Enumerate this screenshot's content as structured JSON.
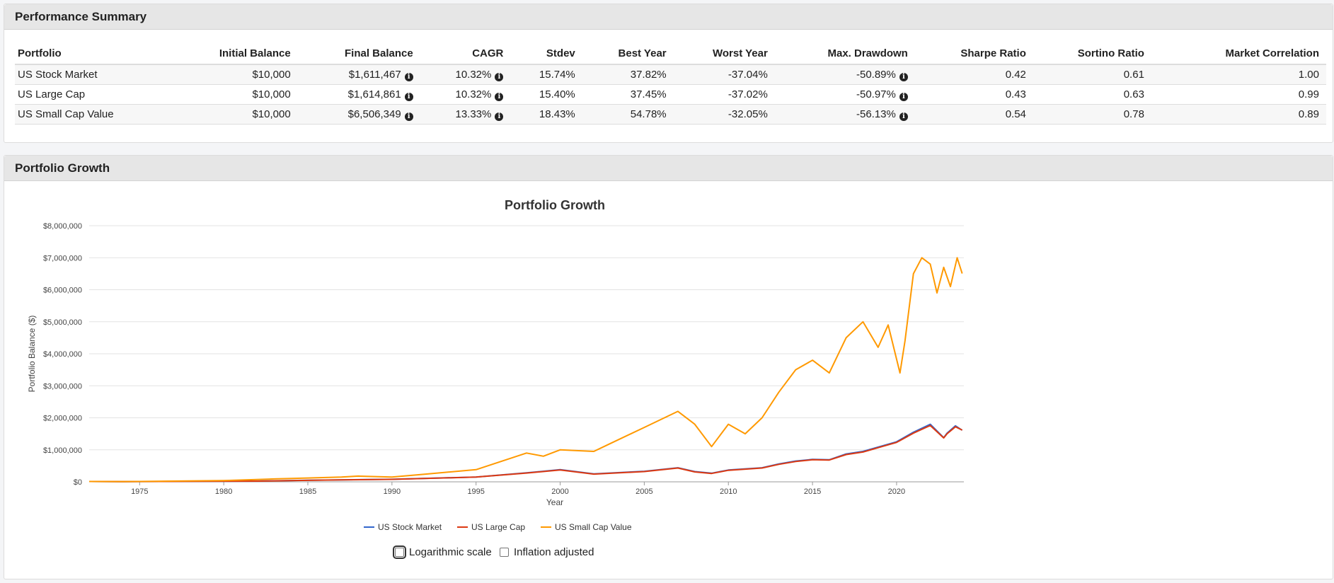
{
  "summary": {
    "title": "Performance Summary",
    "headers": [
      "Portfolio",
      "Initial Balance",
      "Final Balance",
      "CAGR",
      "Stdev",
      "Best Year",
      "Worst Year",
      "Max. Drawdown",
      "Sharpe Ratio",
      "Sortino Ratio",
      "Market Correlation"
    ],
    "rows": [
      {
        "portfolio": "US Stock Market",
        "initial": "$10,000",
        "final": "$1,611,467",
        "cagr": "10.32%",
        "stdev": "15.74%",
        "best": "37.82%",
        "worst": "-37.04%",
        "drawdown": "-50.89%",
        "sharpe": "0.42",
        "sortino": "0.61",
        "corr": "1.00"
      },
      {
        "portfolio": "US Large Cap",
        "initial": "$10,000",
        "final": "$1,614,861",
        "cagr": "10.32%",
        "stdev": "15.40%",
        "best": "37.45%",
        "worst": "-37.02%",
        "drawdown": "-50.97%",
        "sharpe": "0.43",
        "sortino": "0.63",
        "corr": "0.99"
      },
      {
        "portfolio": "US Small Cap Value",
        "initial": "$10,000",
        "final": "$6,506,349",
        "cagr": "13.33%",
        "stdev": "18.43%",
        "best": "54.78%",
        "worst": "-32.05%",
        "drawdown": "-56.13%",
        "sharpe": "0.54",
        "sortino": "0.78",
        "corr": "0.89"
      }
    ]
  },
  "growth": {
    "title": "Portfolio Growth",
    "controls": {
      "log_scale_label": "Logarithmic scale",
      "inflation_label": "Inflation adjusted"
    }
  },
  "icons": {
    "info": "info-circle-icon"
  },
  "chart_data": {
    "type": "line",
    "title": "Portfolio Growth",
    "xlabel": "Year",
    "ylabel": "Portfolio Balance ($)",
    "xlim": [
      1972,
      2024
    ],
    "ylim": [
      0,
      8000000
    ],
    "xticks": [
      1975,
      1980,
      1985,
      1990,
      1995,
      2000,
      2005,
      2010,
      2015,
      2020
    ],
    "yticks": [
      0,
      1000000,
      2000000,
      3000000,
      4000000,
      5000000,
      6000000,
      7000000,
      8000000
    ],
    "ytick_labels": [
      "$0",
      "$1,000,000",
      "$2,000,000",
      "$3,000,000",
      "$4,000,000",
      "$5,000,000",
      "$6,000,000",
      "$7,000,000",
      "$8,000,000"
    ],
    "grid": true,
    "legend_position": "bottom-center",
    "series": [
      {
        "name": "US Stock Market",
        "color": "#3366cc",
        "x": [
          1972,
          1974,
          1975,
          1980,
          1982,
          1985,
          1987,
          1990,
          1995,
          1998,
          2000,
          2002,
          2005,
          2007,
          2008,
          2009,
          2010,
          2012,
          2013,
          2014,
          2015,
          2016,
          2017,
          2018,
          2019,
          2020,
          2021,
          2022,
          2022.8,
          2023,
          2023.5,
          2023.9
        ],
        "y": [
          10000,
          7000,
          9000,
          20000,
          24000,
          48000,
          62000,
          80000,
          150000,
          280000,
          380000,
          250000,
          330000,
          440000,
          320000,
          270000,
          370000,
          440000,
          560000,
          650000,
          700000,
          690000,
          870000,
          950000,
          1100000,
          1250000,
          1550000,
          1800000,
          1380000,
          1520000,
          1750000,
          1611467
        ]
      },
      {
        "name": "US Large Cap",
        "color": "#dc3912",
        "x": [
          1972,
          1974,
          1975,
          1980,
          1982,
          1985,
          1987,
          1990,
          1995,
          1998,
          2000,
          2002,
          2005,
          2007,
          2008,
          2009,
          2010,
          2012,
          2013,
          2014,
          2015,
          2016,
          2017,
          2018,
          2019,
          2020,
          2021,
          2022,
          2022.8,
          2023,
          2023.5,
          2023.9
        ],
        "y": [
          10000,
          7000,
          9000,
          19000,
          23000,
          46000,
          60000,
          78000,
          148000,
          275000,
          370000,
          240000,
          320000,
          430000,
          310000,
          260000,
          360000,
          430000,
          545000,
          635000,
          690000,
          680000,
          850000,
          930000,
          1080000,
          1230000,
          1520000,
          1760000,
          1370000,
          1500000,
          1720000,
          1614861
        ]
      },
      {
        "name": "US Small Cap Value",
        "color": "#ff9900",
        "x": [
          1972,
          1974,
          1975,
          1980,
          1983,
          1985,
          1987,
          1988,
          1990,
          1992,
          1995,
          1998,
          1999,
          2000,
          2002,
          2003,
          2005,
          2007,
          2008,
          2009,
          2010,
          2011,
          2012,
          2013,
          2014,
          2015,
          2016,
          2017,
          2018,
          2018.9,
          2019.5,
          2020.2,
          2020.5,
          2021,
          2021.5,
          2022,
          2022.4,
          2022.8,
          2023.2,
          2023.6,
          2023.9
        ],
        "y": [
          10000,
          8000,
          12000,
          40000,
          90000,
          120000,
          150000,
          180000,
          150000,
          240000,
          380000,
          900000,
          800000,
          1000000,
          950000,
          1200000,
          1700000,
          2200000,
          1800000,
          1100000,
          1800000,
          1500000,
          2000000,
          2800000,
          3500000,
          3800000,
          3400000,
          4500000,
          5000000,
          4200000,
          4900000,
          3400000,
          4400000,
          6500000,
          7000000,
          6800000,
          5900000,
          6700000,
          6100000,
          7000000,
          6506349
        ]
      }
    ]
  }
}
